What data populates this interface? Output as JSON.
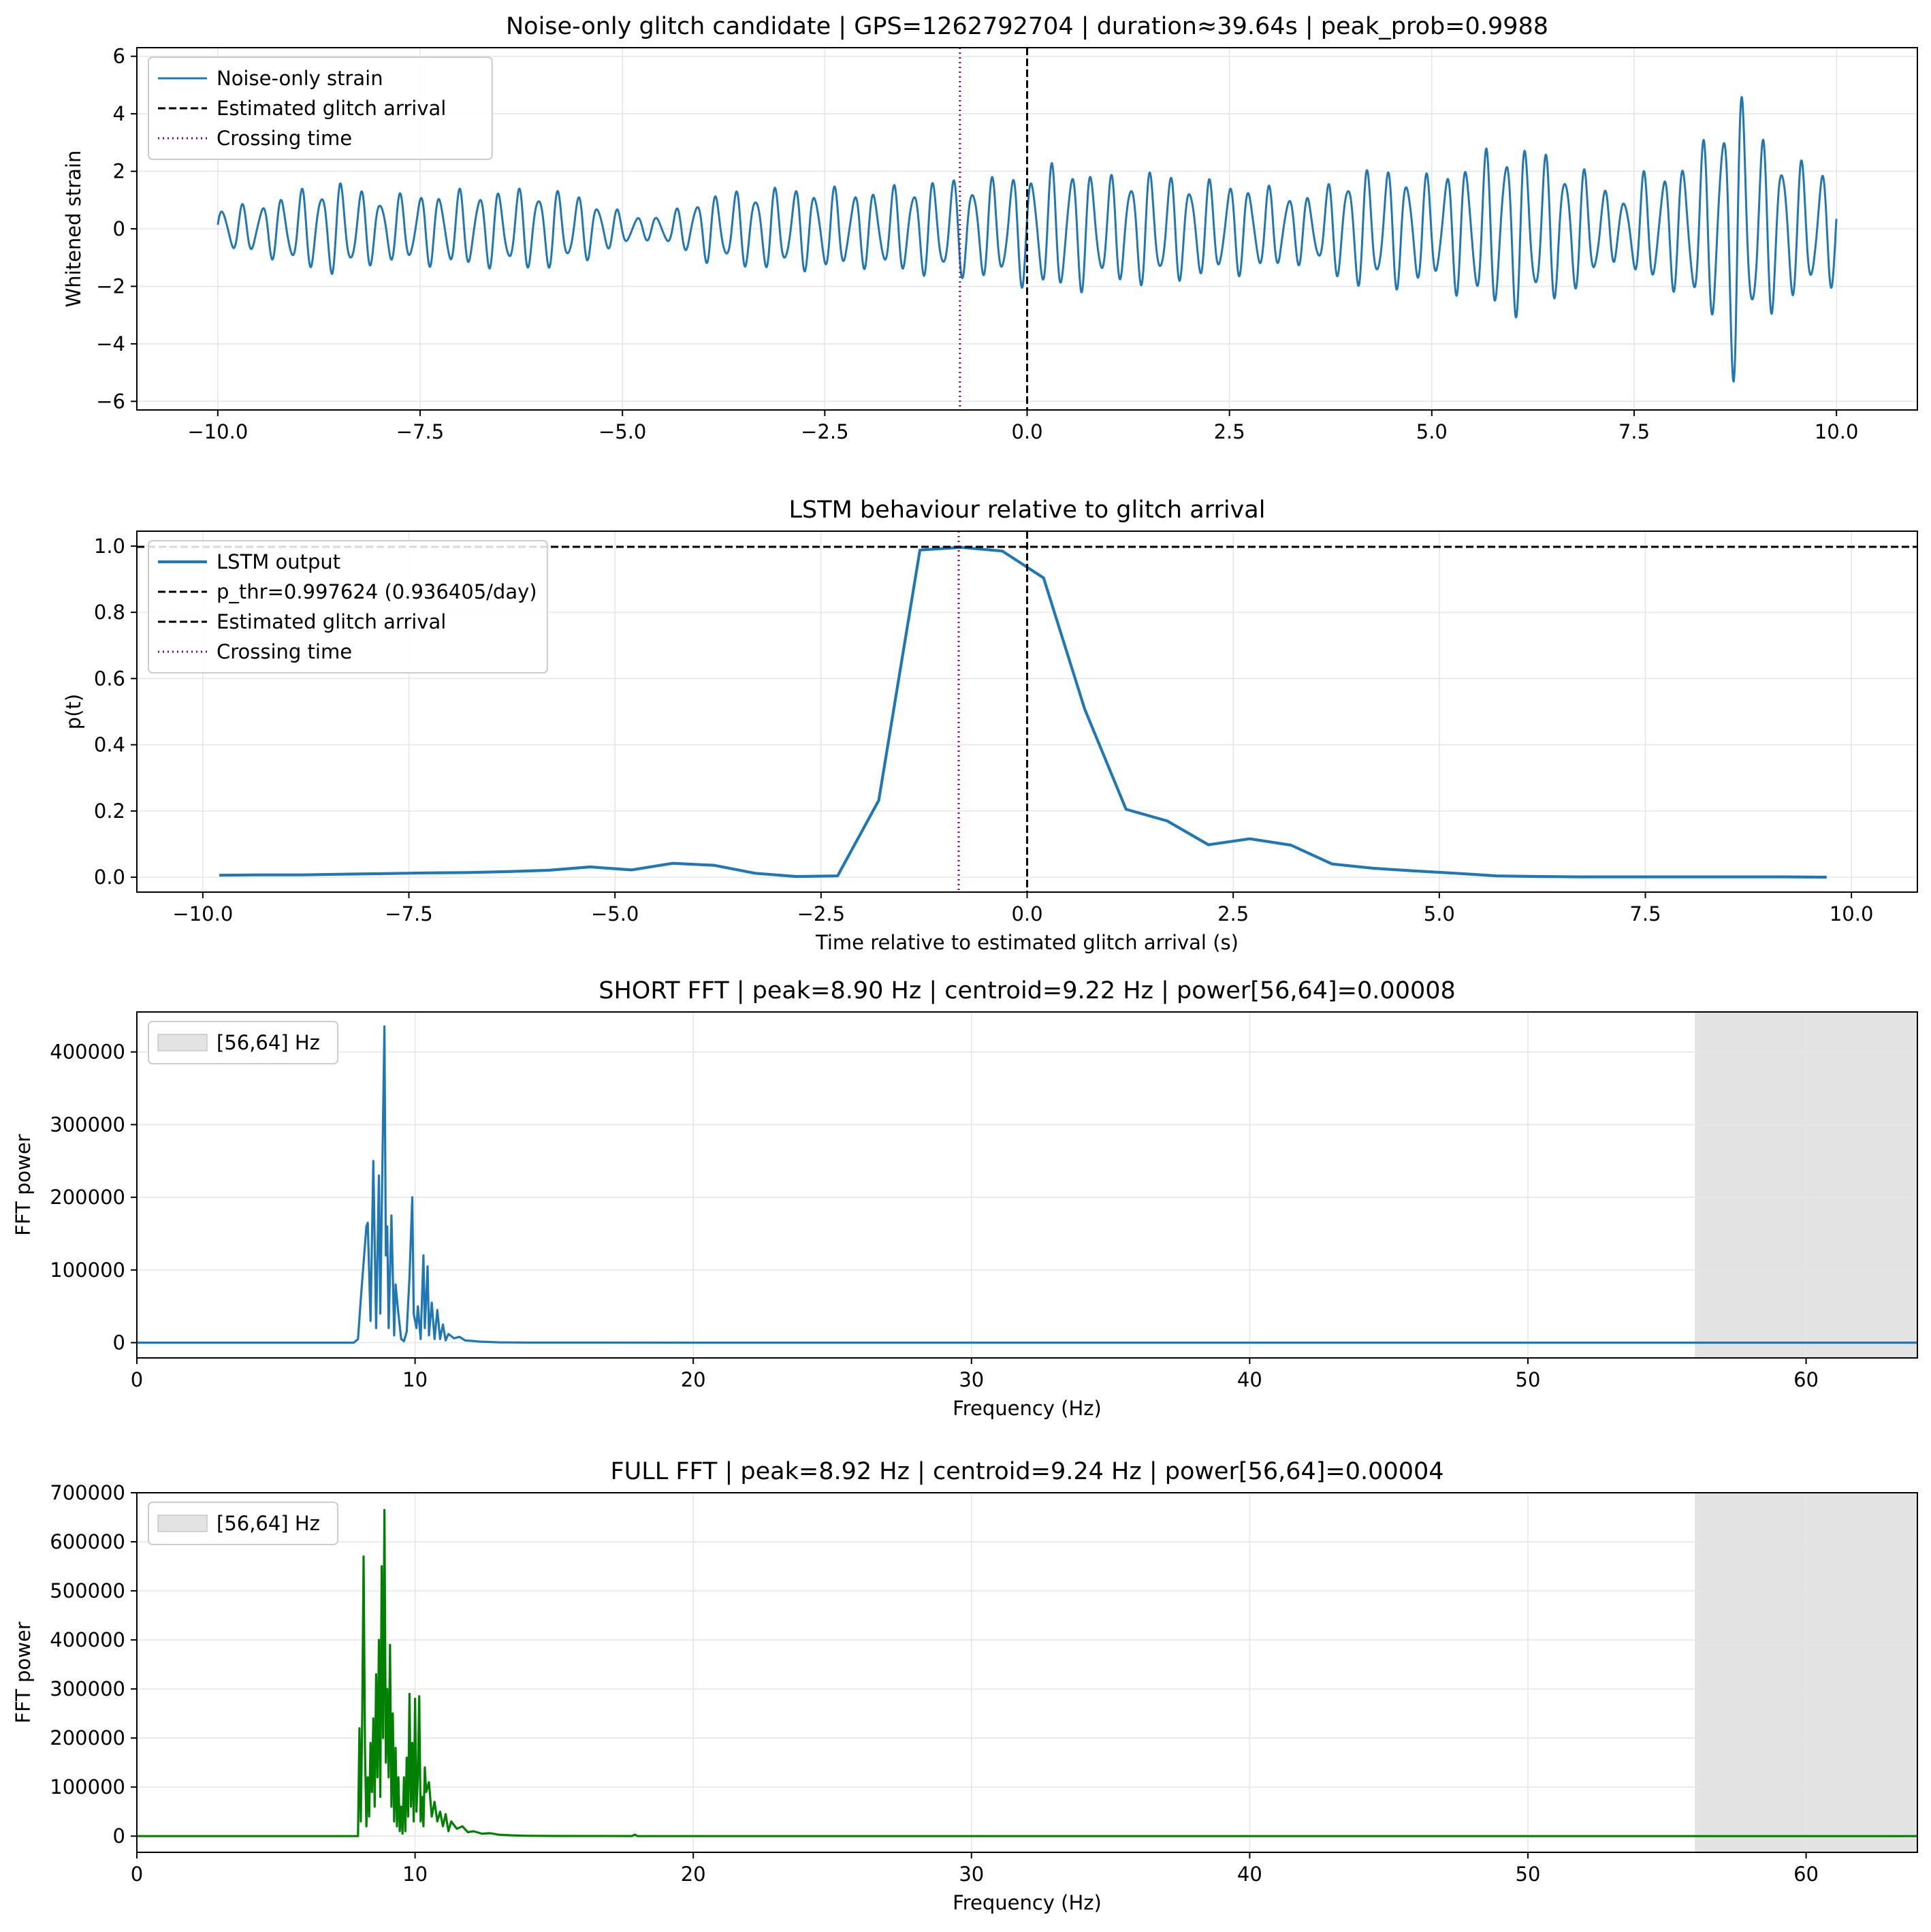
{
  "colors": {
    "strain": "#1f77b4",
    "lstm": "#1f77b4",
    "short_fft": "#1f77b4",
    "full_fft": "#008000",
    "arrival": "#000000",
    "crossing": "#800080",
    "threshold": "#000000",
    "band": "#e3e3e3",
    "grid": "#e6e6e6"
  },
  "chart_data": [
    {
      "id": "strain",
      "type": "line",
      "title": "Noise-only glitch candidate | GPS=1262792704 | duration≈39.64s | peak_prob=0.9988",
      "xlabel": "",
      "ylabel": "Whitened strain",
      "xlim": [
        -11.0,
        11.0
      ],
      "ylim": [
        -6.3,
        6.3
      ],
      "xticks": [
        -10.0,
        -7.5,
        -5.0,
        -2.5,
        0.0,
        2.5,
        5.0,
        7.5,
        10.0
      ],
      "xtick_labels": [
        "−10.0",
        "−7.5",
        "−5.0",
        "−2.5",
        "0.0",
        "2.5",
        "5.0",
        "7.5",
        "10.0"
      ],
      "yticks": [
        -6,
        -4,
        -2,
        0,
        2,
        4,
        6
      ],
      "ytick_labels": [
        "−6",
        "−4",
        "−2",
        "0",
        "2",
        "4",
        "6"
      ],
      "grid": true,
      "legend_position": "upper-left",
      "legend": [
        "Noise-only strain",
        "Estimated glitch arrival",
        "Crossing time"
      ],
      "arrival_x": 0.0,
      "crossing_x": -0.83,
      "signal": {
        "x_start": -10.0,
        "x_end": 10.0,
        "carrier_hz": 4.1,
        "envelope": [
          [
            -10.0,
            0.8
          ],
          [
            -9.5,
            0.9
          ],
          [
            -9.0,
            1.4
          ],
          [
            -8.5,
            1.7
          ],
          [
            -8.0,
            1.2
          ],
          [
            -7.5,
            1.3
          ],
          [
            -7.0,
            1.4
          ],
          [
            -6.5,
            1.4
          ],
          [
            -6.0,
            1.5
          ],
          [
            -5.5,
            1.2
          ],
          [
            -5.0,
            0.6
          ],
          [
            -4.7,
            0.4
          ],
          [
            -4.4,
            0.6
          ],
          [
            -4.0,
            1.2
          ],
          [
            -3.5,
            1.4
          ],
          [
            -3.0,
            1.5
          ],
          [
            -2.5,
            1.5
          ],
          [
            -2.0,
            1.4
          ],
          [
            -1.5,
            1.6
          ],
          [
            -1.0,
            1.8
          ],
          [
            -0.5,
            1.8
          ],
          [
            0.0,
            2.1
          ],
          [
            0.5,
            2.4
          ],
          [
            1.0,
            1.9
          ],
          [
            1.5,
            2.1
          ],
          [
            2.0,
            1.8
          ],
          [
            2.5,
            1.7
          ],
          [
            3.0,
            1.5
          ],
          [
            3.5,
            1.2
          ],
          [
            4.0,
            2.1
          ],
          [
            4.5,
            2.2
          ],
          [
            5.0,
            1.9
          ],
          [
            5.5,
            2.6
          ],
          [
            6.0,
            3.2
          ],
          [
            6.5,
            2.6
          ],
          [
            7.0,
            2.0
          ],
          [
            7.3,
            1.0
          ],
          [
            7.6,
            2.0
          ],
          [
            8.0,
            2.2
          ],
          [
            8.5,
            3.5
          ],
          [
            8.75,
            5.7
          ],
          [
            9.0,
            3.5
          ],
          [
            9.5,
            2.5
          ],
          [
            10.0,
            2.0
          ]
        ]
      }
    },
    {
      "id": "lstm",
      "type": "line",
      "title": "LSTM behaviour relative to glitch arrival",
      "xlabel": "Time relative to estimated glitch arrival (s)",
      "ylabel": "p(t)",
      "xlim": [
        -10.8,
        10.8
      ],
      "ylim": [
        -0.045,
        1.045
      ],
      "xticks": [
        -10.0,
        -7.5,
        -5.0,
        -2.5,
        0.0,
        2.5,
        5.0,
        7.5,
        10.0
      ],
      "xtick_labels": [
        "−10.0",
        "−7.5",
        "−5.0",
        "−2.5",
        "0.0",
        "2.5",
        "5.0",
        "7.5",
        "10.0"
      ],
      "yticks": [
        0.0,
        0.2,
        0.4,
        0.6,
        0.8,
        1.0
      ],
      "ytick_labels": [
        "0.0",
        "0.2",
        "0.4",
        "0.6",
        "0.8",
        "1.0"
      ],
      "grid": true,
      "legend_position": "upper-left",
      "legend": [
        "LSTM output",
        "p_thr=0.997624 (0.936405/day)",
        "Estimated glitch arrival",
        "Crossing time"
      ],
      "threshold": 0.997624,
      "arrival_x": 0.0,
      "crossing_x": -0.83,
      "x": [
        -9.8,
        -9.3,
        -8.8,
        -8.3,
        -7.8,
        -7.3,
        -6.8,
        -6.3,
        -5.8,
        -5.3,
        -4.8,
        -4.3,
        -3.8,
        -3.3,
        -2.8,
        -2.3,
        -1.8,
        -1.3,
        -0.8,
        -0.3,
        0.2,
        0.7,
        1.2,
        1.7,
        2.2,
        2.7,
        3.2,
        3.7,
        4.2,
        4.7,
        5.2,
        5.7,
        6.2,
        6.7,
        7.2,
        7.7,
        8.2,
        8.7,
        9.2,
        9.7
      ],
      "y": [
        0.006,
        0.007,
        0.007,
        0.009,
        0.011,
        0.013,
        0.014,
        0.017,
        0.021,
        0.031,
        0.022,
        0.042,
        0.036,
        0.012,
        0.002,
        0.004,
        0.232,
        0.988,
        0.996,
        0.985,
        0.904,
        0.507,
        0.205,
        0.17,
        0.098,
        0.116,
        0.097,
        0.04,
        0.027,
        0.019,
        0.012,
        0.004,
        0.002,
        0.001,
        0.001,
        0.001,
        0.001,
        0.001,
        0.001,
        0.0
      ]
    },
    {
      "id": "short_fft",
      "type": "line",
      "title": "SHORT FFT | peak=8.90 Hz | centroid=9.22 Hz | power[56,64]=0.00008",
      "xlabel": "Frequency (Hz)",
      "ylabel": "FFT power",
      "xlim": [
        0,
        64
      ],
      "ylim": [
        -21000,
        455000
      ],
      "xticks": [
        0,
        10,
        20,
        30,
        40,
        50,
        60
      ],
      "xtick_labels": [
        "0",
        "10",
        "20",
        "30",
        "40",
        "50",
        "60"
      ],
      "yticks": [
        0,
        100000,
        200000,
        300000,
        400000
      ],
      "ytick_labels": [
        "0",
        "100000",
        "200000",
        "300000",
        "400000"
      ],
      "grid": true,
      "legend_position": "upper-left",
      "legend": [
        "[56,64] Hz"
      ],
      "band": [
        56,
        64
      ],
      "x": [
        0,
        7.8,
        7.95,
        8.05,
        8.15,
        8.25,
        8.3,
        8.4,
        8.5,
        8.6,
        8.7,
        8.75,
        8.8,
        8.9,
        8.95,
        9.0,
        9.05,
        9.15,
        9.25,
        9.3,
        9.4,
        9.5,
        9.6,
        9.7,
        9.8,
        9.9,
        9.95,
        10.05,
        10.1,
        10.2,
        10.3,
        10.35,
        10.45,
        10.5,
        10.6,
        10.7,
        10.8,
        10.9,
        11.0,
        11.1,
        11.2,
        11.4,
        11.6,
        11.8,
        12.0,
        12.3,
        12.6,
        13.0,
        13.5,
        14.0,
        15.0,
        20.0,
        30.0,
        64.0
      ],
      "y": [
        0,
        0,
        5000,
        60000,
        110000,
        160000,
        165000,
        30000,
        250000,
        20000,
        230000,
        40000,
        180000,
        435000,
        120000,
        160000,
        20000,
        175000,
        10000,
        80000,
        40000,
        5000,
        2000,
        15000,
        90000,
        200000,
        40000,
        20000,
        50000,
        5000,
        120000,
        20000,
        105000,
        10000,
        55000,
        5000,
        45000,
        5000,
        25000,
        3000,
        12000,
        6000,
        8000,
        3000,
        2500,
        1500,
        1000,
        500,
        300,
        100,
        50,
        20,
        0,
        0
      ]
    },
    {
      "id": "full_fft",
      "type": "line",
      "title": "FULL FFT | peak=8.92 Hz | centroid=9.24 Hz | power[56,64]=0.00004",
      "xlabel": "Frequency (Hz)",
      "ylabel": "FFT power",
      "xlim": [
        0,
        64
      ],
      "ylim": [
        -33000,
        700000
      ],
      "xticks": [
        0,
        10,
        20,
        30,
        40,
        50,
        60
      ],
      "xtick_labels": [
        "0",
        "10",
        "20",
        "30",
        "40",
        "50",
        "60"
      ],
      "yticks": [
        0,
        100000,
        200000,
        300000,
        400000,
        500000,
        600000,
        700000
      ],
      "ytick_labels": [
        "0",
        "100000",
        "200000",
        "300000",
        "400000",
        "500000",
        "600000",
        "700000"
      ],
      "grid": true,
      "legend_position": "upper-left",
      "legend": [
        "[56,64] Hz"
      ],
      "band": [
        56,
        64
      ],
      "x": [
        0,
        7.95,
        8.0,
        8.05,
        8.1,
        8.15,
        8.2,
        8.25,
        8.3,
        8.35,
        8.4,
        8.45,
        8.5,
        8.55,
        8.6,
        8.65,
        8.7,
        8.75,
        8.8,
        8.85,
        8.9,
        8.95,
        9.0,
        9.05,
        9.1,
        9.15,
        9.2,
        9.25,
        9.3,
        9.35,
        9.4,
        9.45,
        9.5,
        9.55,
        9.6,
        9.65,
        9.7,
        9.75,
        9.8,
        9.85,
        9.9,
        9.95,
        10.0,
        10.05,
        10.1,
        10.15,
        10.2,
        10.25,
        10.3,
        10.35,
        10.4,
        10.5,
        10.6,
        10.7,
        10.8,
        10.9,
        11.0,
        11.1,
        11.2,
        11.3,
        11.5,
        11.7,
        11.9,
        12.1,
        12.4,
        12.7,
        13.0,
        13.5,
        14.0,
        15.0,
        17.8,
        17.9,
        18.0,
        20.0,
        64.0
      ],
      "y": [
        0,
        0,
        220000,
        30000,
        245000,
        570000,
        180000,
        20000,
        120000,
        40000,
        190000,
        90000,
        240000,
        60000,
        330000,
        120000,
        400000,
        80000,
        550000,
        200000,
        665000,
        150000,
        300000,
        120000,
        390000,
        60000,
        250000,
        30000,
        180000,
        20000,
        120000,
        10000,
        60000,
        5000,
        120000,
        10000,
        160000,
        40000,
        290000,
        60000,
        190000,
        30000,
        280000,
        50000,
        120000,
        285000,
        30000,
        80000,
        20000,
        140000,
        90000,
        110000,
        40000,
        70000,
        30000,
        50000,
        20000,
        45000,
        10000,
        30000,
        15000,
        20000,
        8000,
        10000,
        5000,
        6000,
        3000,
        1500,
        800,
        300,
        200,
        3000,
        100,
        50,
        0
      ]
    }
  ]
}
